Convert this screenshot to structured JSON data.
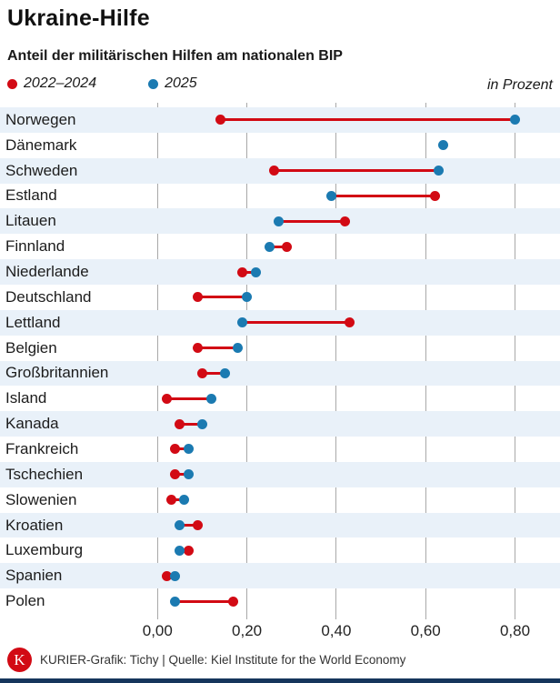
{
  "header": {
    "title": "Ukraine-Hilfe",
    "subtitle": "Anteil der militärischen Hilfen am nationalen BIP",
    "unit_label": "in Prozent"
  },
  "colors": {
    "red_2022_2024": "#d20a14",
    "blue_2025": "#1b7ab1",
    "row_stripe": "#e9f1f9",
    "gridline": "#a8a8a8",
    "bottom_bar": "#16355c",
    "logo_red": "#d20a14"
  },
  "chart_data": {
    "type": "dumbbell-dot",
    "orientation": "horizontal",
    "title": "Anteil der militärischen Hilfen am nationalen BIP",
    "xlabel": "in Prozent",
    "ylabel": "",
    "grid": true,
    "legend_position": "top-left",
    "xlim": [
      -0.35,
      0.9
    ],
    "x_ticks": [
      0.0,
      0.2,
      0.4,
      0.6,
      0.8
    ],
    "x_tick_labels": [
      "0,00",
      "0,20",
      "0,40",
      "0,60",
      "0,80"
    ],
    "categories": [
      "Norwegen",
      "Dänemark",
      "Schweden",
      "Estland",
      "Litauen",
      "Finnland",
      "Niederlande",
      "Deutschland",
      "Lettland",
      "Belgien",
      "Großbritannien",
      "Island",
      "Kanada",
      "Frankreich",
      "Tschechien",
      "Slowenien",
      "Kroatien",
      "Luxemburg",
      "Spanien",
      "Polen"
    ],
    "series": [
      {
        "name": "2022–2024",
        "color": "#d20a14",
        "values": [
          0.14,
          null,
          0.26,
          0.62,
          0.42,
          0.29,
          0.19,
          0.09,
          0.43,
          0.09,
          0.1,
          0.02,
          0.05,
          0.04,
          0.04,
          0.03,
          0.09,
          0.07,
          0.02,
          0.17
        ]
      },
      {
        "name": "2025",
        "color": "#1b7ab1",
        "values": [
          0.8,
          0.64,
          0.63,
          0.39,
          0.27,
          0.25,
          0.22,
          0.2,
          0.19,
          0.18,
          0.15,
          0.12,
          0.1,
          0.07,
          0.07,
          0.06,
          0.05,
          0.05,
          0.04,
          0.04
        ]
      }
    ]
  },
  "footer": {
    "logo_letter": "K",
    "credit": "KURIER-Grafik: Tichy | Quelle: Kiel Institute for the World Economy"
  }
}
